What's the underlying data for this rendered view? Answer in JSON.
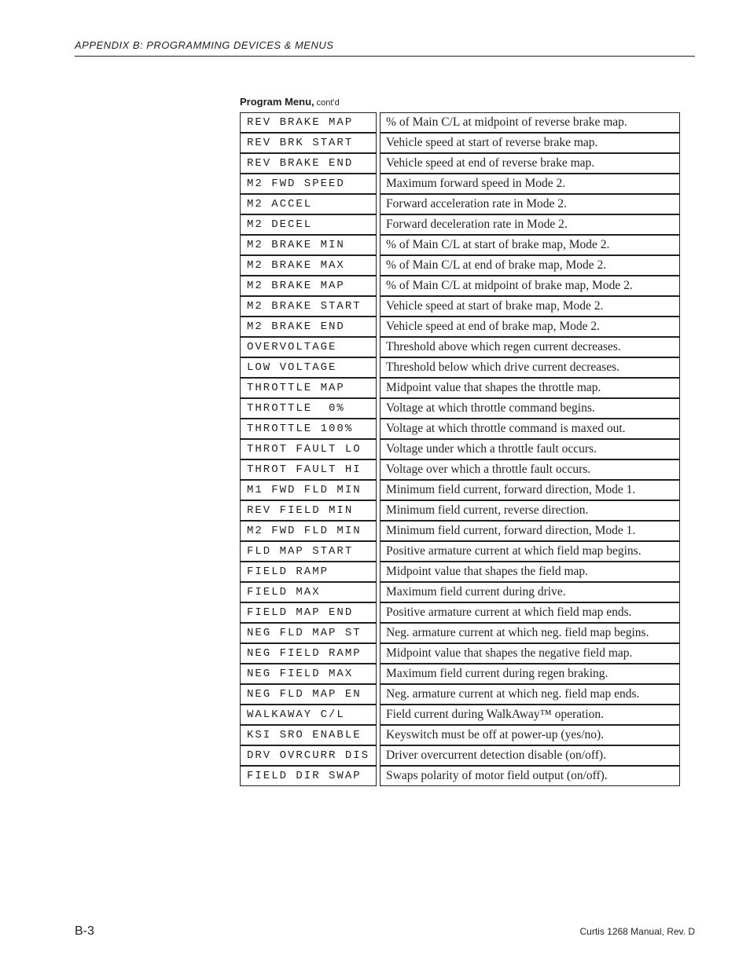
{
  "header": "APPENDIX B:  PROGRAMMING DEVICES & MENUS",
  "table_title_bold": "Program Menu,",
  "table_title_small": " cont'd",
  "page_number": "B-3",
  "footer_right": "Curtis 1268 Manual, Rev. D",
  "rows": [
    {
      "param": "REV BRAKE MAP",
      "desc": "% of Main C/L at midpoint of reverse brake map."
    },
    {
      "param": "REV BRK START",
      "desc": "Vehicle speed at start of reverse brake map."
    },
    {
      "param": "REV BRAKE END",
      "desc": "Vehicle speed at end of reverse brake map."
    },
    {
      "param": "M2 FWD SPEED",
      "desc": "Maximum forward speed in Mode 2."
    },
    {
      "param": "M2 ACCEL",
      "desc": "Forward acceleration rate in Mode 2."
    },
    {
      "param": "M2 DECEL",
      "desc": "Forward deceleration rate in Mode 2."
    },
    {
      "param": "M2 BRAKE MIN",
      "desc": "% of Main C/L at start of brake map, Mode 2."
    },
    {
      "param": "M2 BRAKE MAX",
      "desc": "% of Main C/L at end of brake map, Mode 2."
    },
    {
      "param": "M2 BRAKE MAP",
      "desc": "% of Main C/L at midpoint of brake map, Mode 2."
    },
    {
      "param": "M2 BRAKE START",
      "desc": "Vehicle speed at start of brake map, Mode 2."
    },
    {
      "param": "M2 BRAKE END",
      "desc": "Vehicle speed at end of brake map, Mode 2."
    },
    {
      "param": "OVERVOLTAGE",
      "desc": "Threshold above which regen current decreases."
    },
    {
      "param": "LOW VOLTAGE",
      "desc": "Threshold below which drive current decreases."
    },
    {
      "param": "THROTTLE MAP",
      "desc": "Midpoint value that shapes the throttle map."
    },
    {
      "param": "THROTTLE  0%",
      "desc": "Voltage at which throttle command begins."
    },
    {
      "param": "THROTTLE 100%",
      "desc": "Voltage at which throttle command is maxed out."
    },
    {
      "param": "THROT FAULT LO",
      "desc": "Voltage under which a throttle fault occurs."
    },
    {
      "param": "THROT FAULT HI",
      "desc": "Voltage over which a throttle fault occurs."
    },
    {
      "param": "M1 FWD FLD MIN",
      "desc": "Minimum field current, forward direction, Mode 1."
    },
    {
      "param": "REV FIELD MIN",
      "desc": "Minimum field current, reverse direction."
    },
    {
      "param": "M2 FWD FLD MIN",
      "desc": "Minimum field current, forward direction, Mode 1."
    },
    {
      "param": "FLD MAP START",
      "desc": "Positive armature current at which field map begins."
    },
    {
      "param": "FIELD RAMP",
      "desc": "Midpoint value that shapes the field map."
    },
    {
      "param": "FIELD MAX",
      "desc": "Maximum field current during drive."
    },
    {
      "param": "FIELD MAP END",
      "desc": "Positive armature current at which field map ends."
    },
    {
      "param": "NEG FLD MAP ST",
      "desc": "Neg. armature current at which neg. field map begins."
    },
    {
      "param": "NEG FIELD RAMP",
      "desc": "Midpoint value that shapes the negative field map."
    },
    {
      "param": "NEG FIELD MAX",
      "desc": "Maximum field current during regen braking."
    },
    {
      "param": "NEG FLD MAP EN",
      "desc": "Neg. armature current at which neg. field map ends."
    },
    {
      "param": "WALKAWAY C/L",
      "desc": "Field current during WalkAway™ operation."
    },
    {
      "param": "KSI SRO ENABLE",
      "desc": "Keyswitch must be off at power-up (yes/no)."
    },
    {
      "param": "DRV OVRCURR DIS",
      "desc": "Driver overcurrent detection disable (on/off)."
    },
    {
      "param": "FIELD DIR SWAP",
      "desc": "Swaps polarity of motor field output (on/off)."
    }
  ]
}
